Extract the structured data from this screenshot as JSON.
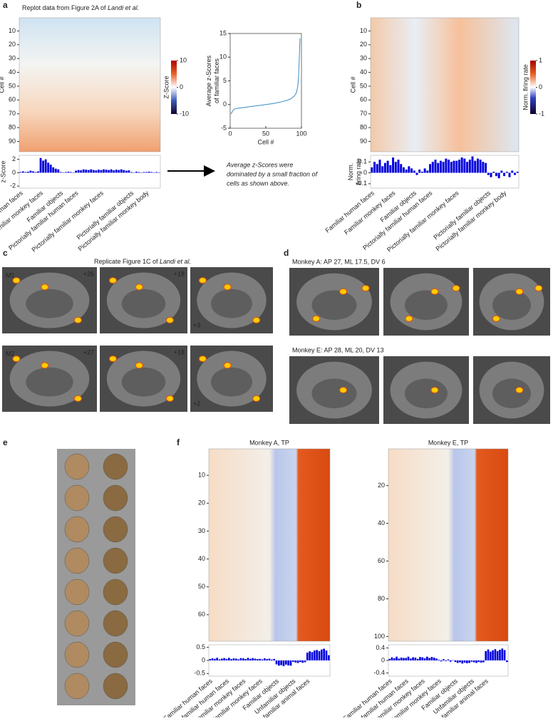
{
  "panel_labels": [
    "a",
    "b",
    "c",
    "d",
    "e",
    "f"
  ],
  "chart_data": [
    {
      "type": "heatmap",
      "title": "Replot data from Figure 2A of ",
      "title_italic": "Landi et al.",
      "ylabel": "Cell #",
      "ylim": [
        0.5,
        97.5
      ],
      "yticks": [
        10,
        20,
        30,
        40,
        50,
        60,
        70,
        80,
        90
      ],
      "colorbar": {
        "label": "Z-Score",
        "clim": [
          -10,
          10
        ],
        "ticks": [
          10,
          0,
          -10
        ]
      }
    },
    {
      "type": "bar",
      "ylabel": [
        "z-Score"
      ],
      "color": "#0000dd",
      "ylim": [
        -2.3,
        2.6
      ],
      "yticks": [
        2,
        0,
        -2
      ],
      "groups": [
        {
          "name": "Familiar human faces",
          "values": [
            0.1,
            0.2,
            0.1,
            0.15,
            0.3,
            0.2,
            0.1,
            0.2
          ]
        },
        {
          "name": "Familiar monkey faces",
          "values": [
            2.2,
            1.8,
            2.0,
            1.5,
            1.2,
            0.8,
            0.6,
            0.5
          ]
        },
        {
          "name": "Familiar objects",
          "values": [
            0.1,
            0.05,
            0.1,
            0.15,
            0.1,
            0.05
          ]
        },
        {
          "name": "Pictorially familiar human faces",
          "values": [
            0.3,
            0.4,
            0.35,
            0.5,
            0.45,
            0.4,
            0.5,
            0.4,
            0.35,
            0.45
          ]
        },
        {
          "name": "Pictorially familiar monkey faces",
          "values": [
            0.4,
            0.5,
            0.45,
            0.4,
            0.5,
            0.35,
            0.45,
            0.4,
            0.5,
            0.4,
            0.3,
            0.35
          ]
        },
        {
          "name": "Pictorially familiar objects",
          "values": [
            0.1,
            0.05,
            0.15,
            0.1,
            0.05,
            0.1
          ]
        },
        {
          "name": "Pictorially familiar monkey body",
          "values": [
            0.1,
            0.15,
            0.1,
            0.05,
            0.1,
            0.05
          ]
        }
      ]
    },
    {
      "type": "line",
      "xlabel": "Cell #",
      "ylabel": [
        "Average z-Scores",
        "of familiar faces"
      ],
      "color": "#3a8cc8",
      "xlim": [
        0,
        100
      ],
      "xticks": [
        0,
        50,
        100
      ],
      "ylim": [
        -5,
        15
      ],
      "yticks": [
        -5,
        0,
        5,
        10,
        15
      ],
      "x": [
        1,
        5,
        10,
        20,
        30,
        40,
        50,
        60,
        70,
        80,
        85,
        90,
        93,
        95,
        96,
        97,
        98
      ],
      "values": [
        -2,
        -1,
        -0.8,
        -0.6,
        -0.4,
        -0.2,
        0,
        0.2,
        0.5,
        0.9,
        1.2,
        1.8,
        2.5,
        4,
        6,
        10,
        14
      ]
    },
    {
      "type": "heatmap",
      "ylabel": "Cell #",
      "ylim": [
        0.5,
        97.5
      ],
      "yticks": [
        10,
        20,
        30,
        40,
        50,
        60,
        70,
        80,
        90
      ],
      "colorbar": {
        "label": "Norm. firing rate",
        "clim": [
          -1,
          1
        ],
        "ticks": [
          1,
          0,
          -1
        ]
      }
    },
    {
      "type": "bar",
      "ylabel": [
        "Norm.",
        "firing rate"
      ],
      "color": "#0000dd",
      "ylim": [
        -0.14,
        0.16
      ],
      "yticks": [
        0.1,
        0,
        -0.1
      ],
      "groups": [
        {
          "name": "Familiar human faces",
          "values": [
            0.05,
            0.1,
            0.08,
            0.12,
            0.06,
            0.09,
            0.11,
            0.07
          ]
        },
        {
          "name": "Familiar monkey faces",
          "values": [
            0.14,
            0.1,
            0.12,
            0.08,
            0.05,
            0.03,
            0.06,
            0.04
          ]
        },
        {
          "name": "Familiar objects",
          "values": [
            0.02,
            -0.02,
            0.03,
            0.01,
            0.04,
            0.02
          ]
        },
        {
          "name": "Pictorially familiar human faces",
          "values": [
            0.08,
            0.1,
            0.12,
            0.09,
            0.11,
            0.1,
            0.13,
            0.12,
            0.1,
            0.11
          ]
        },
        {
          "name": "Pictorially familiar monkey faces",
          "values": [
            0.11,
            0.12,
            0.14,
            0.13,
            0.1,
            0.12,
            0.15,
            0.11,
            0.13,
            0.12,
            0.1,
            0.09
          ]
        },
        {
          "name": "Pictorially familiar objects",
          "values": [
            -0.02,
            -0.04,
            0.01,
            -0.03,
            -0.05,
            0.02
          ]
        },
        {
          "name": "Pictorially familiar monkey body",
          "values": [
            -0.03,
            0.01,
            -0.04,
            0.02,
            -0.02,
            0.01
          ]
        }
      ]
    },
    {
      "type": "heatmap",
      "title": "Monkey A, TP",
      "ylim": [
        0.5,
        69.5
      ],
      "yticks": [
        10,
        20,
        30,
        40,
        50,
        60
      ]
    },
    {
      "type": "bar",
      "color": "#0000dd",
      "ylim": [
        -0.6,
        0.6
      ],
      "yticks": [
        0.5,
        0,
        -0.5
      ],
      "groups": [
        {
          "name": "Familiar human faces",
          "values": [
            0.05,
            0.08,
            0.06,
            0.1,
            0.04,
            0.07,
            0.09
          ]
        },
        {
          "name": "Unfamiliar human faces",
          "values": [
            0.06,
            0.1,
            0.05,
            0.08,
            0.07,
            0.04,
            0.09
          ]
        },
        {
          "name": "Familiar monkey faces",
          "values": [
            0.08,
            0.05,
            0.1,
            0.06,
            0.09,
            0.07,
            0.05
          ]
        },
        {
          "name": "Unfamiliar monkey faces",
          "values": [
            0.06,
            0.04,
            0.08,
            0.05,
            0.07,
            0.03,
            0.06
          ]
        },
        {
          "name": "Familiar objects",
          "values": [
            -0.15,
            -0.2,
            -0.18,
            -0.22,
            -0.16,
            -0.19,
            -0.2
          ]
        },
        {
          "name": "Unfamiliar objects",
          "values": [
            -0.05,
            -0.08,
            -0.1,
            -0.06,
            -0.09,
            -0.07
          ]
        },
        {
          "name": "Unfamiliar animal faces",
          "values": [
            0.3,
            0.35,
            0.32,
            0.38,
            0.4,
            0.36,
            0.42,
            0.45,
            0.38,
            0.2
          ]
        }
      ]
    },
    {
      "type": "heatmap",
      "title": "Monkey E, TP",
      "ylim": [
        0.5,
        102.5
      ],
      "yticks": [
        20,
        40,
        60,
        80,
        100
      ]
    },
    {
      "type": "bar",
      "color": "#0000dd",
      "ylim": [
        -0.5,
        0.5
      ],
      "yticks": [
        0.4,
        0,
        -0.4
      ],
      "groups": [
        {
          "name": "Familiar human faces",
          "values": [
            0.05,
            0.1,
            0.07,
            0.12,
            0.06,
            0.09,
            0.08
          ]
        },
        {
          "name": "Unfamiliar human faces",
          "values": [
            0.08,
            0.12,
            0.06,
            0.1,
            0.09,
            0.05,
            0.11
          ]
        },
        {
          "name": "Familiar monkey faces",
          "values": [
            0.1,
            0.07,
            0.12,
            0.08,
            0.11,
            0.09,
            0.06
          ]
        },
        {
          "name": "Unfamiliar monkey faces",
          "values": [
            0.02,
            -0.03,
            0.04,
            -0.02,
            0.03,
            -0.04,
            0.01
          ]
        },
        {
          "name": "Familiar objects",
          "values": [
            -0.05,
            -0.08,
            -0.06,
            -0.1,
            -0.07,
            -0.09,
            -0.08
          ]
        },
        {
          "name": "Unfamiliar objects",
          "values": [
            -0.04,
            -0.06,
            -0.08,
            -0.05,
            -0.07,
            -0.06
          ]
        },
        {
          "name": "Unfamiliar animal faces",
          "values": [
            0.3,
            0.35,
            0.28,
            0.32,
            0.36,
            0.3,
            0.34,
            0.38,
            0.33,
            -0.05
          ]
        }
      ]
    }
  ],
  "annotation": [
    "Average z-Scores were",
    "dominated by a small fraction of",
    "cells as shown above."
  ],
  "panel_c": {
    "title": "Replicate Figure 1C of ",
    "title_italic": "Landi et al.",
    "rows": [
      {
        "label": "M1",
        "slices": [
          "+26",
          "+18",
          "+3"
        ]
      },
      {
        "label": "M2",
        "slices": [
          "+27",
          "+18",
          "+2"
        ]
      }
    ]
  },
  "panel_d": {
    "rows": [
      "Monkey A: AP 27, ML 17.5, DV 6",
      "Monkey E: AP 28, ML 20, DV 13"
    ]
  }
}
